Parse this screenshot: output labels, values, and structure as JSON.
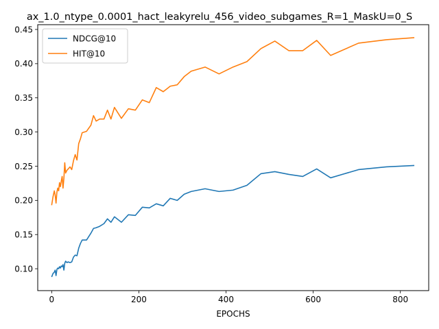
{
  "chart_data": {
    "type": "line",
    "title": "ax_1.0_ntype_0.0001_hact_leakyrelu_456_video_subgames_R=1_MaskU=0_S",
    "xlabel": "EPOCHS",
    "ylabel": "",
    "xlim": [
      -32,
      865
    ],
    "ylim": [
      0.068,
      0.457
    ],
    "xticks": [
      0,
      200,
      400,
      600,
      800
    ],
    "yticks": [
      0.1,
      0.15,
      0.2,
      0.25,
      0.3,
      0.35,
      0.4,
      0.45
    ],
    "ytick_labels": [
      "0.10",
      "0.15",
      "0.20",
      "0.25",
      "0.30",
      "0.35",
      "0.40",
      "0.45"
    ],
    "legend": "top-left",
    "series": [
      {
        "name": "NDCG@10",
        "color": "#1f77b4",
        "x": [
          0,
          3,
          6,
          8,
          10,
          12,
          14,
          16,
          18,
          20,
          22,
          24,
          26,
          28,
          30,
          32,
          35,
          38,
          42,
          46,
          50,
          54,
          58,
          62,
          66,
          70,
          80,
          90,
          96,
          102,
          110,
          120,
          128,
          136,
          144,
          160,
          176,
          192,
          208,
          224,
          240,
          256,
          272,
          288,
          304,
          320,
          352,
          384,
          416,
          448,
          480,
          512,
          544,
          576,
          608,
          640,
          704,
          768,
          832
        ],
        "values": [
          0.088,
          0.093,
          0.095,
          0.098,
          0.09,
          0.099,
          0.101,
          0.1,
          0.103,
          0.101,
          0.104,
          0.103,
          0.106,
          0.098,
          0.108,
          0.111,
          0.109,
          0.11,
          0.109,
          0.11,
          0.117,
          0.12,
          0.119,
          0.13,
          0.137,
          0.142,
          0.142,
          0.152,
          0.159,
          0.16,
          0.162,
          0.166,
          0.173,
          0.168,
          0.176,
          0.168,
          0.179,
          0.178,
          0.19,
          0.189,
          0.195,
          0.192,
          0.203,
          0.2,
          0.209,
          0.213,
          0.217,
          0.213,
          0.215,
          0.222,
          0.239,
          0.242,
          0.238,
          0.235,
          0.246,
          0.233,
          0.245,
          0.249,
          0.251
        ]
      },
      {
        "name": "HIT@10",
        "color": "#ff7f0e",
        "x": [
          0,
          3,
          6,
          8,
          10,
          12,
          14,
          16,
          18,
          20,
          22,
          24,
          26,
          28,
          30,
          32,
          35,
          38,
          42,
          46,
          50,
          54,
          58,
          62,
          66,
          70,
          80,
          90,
          96,
          102,
          110,
          120,
          128,
          136,
          144,
          160,
          176,
          192,
          208,
          224,
          240,
          256,
          272,
          288,
          304,
          320,
          352,
          384,
          416,
          448,
          480,
          512,
          544,
          576,
          608,
          640,
          704,
          768,
          832
        ],
        "values": [
          0.193,
          0.205,
          0.214,
          0.208,
          0.196,
          0.212,
          0.218,
          0.214,
          0.226,
          0.22,
          0.228,
          0.235,
          0.218,
          0.232,
          0.255,
          0.24,
          0.244,
          0.246,
          0.249,
          0.245,
          0.258,
          0.267,
          0.259,
          0.283,
          0.29,
          0.299,
          0.301,
          0.31,
          0.324,
          0.316,
          0.319,
          0.319,
          0.332,
          0.319,
          0.336,
          0.32,
          0.334,
          0.332,
          0.347,
          0.343,
          0.365,
          0.359,
          0.367,
          0.369,
          0.381,
          0.389,
          0.395,
          0.385,
          0.395,
          0.403,
          0.422,
          0.433,
          0.419,
          0.419,
          0.434,
          0.412,
          0.43,
          0.435,
          0.438
        ]
      }
    ]
  }
}
